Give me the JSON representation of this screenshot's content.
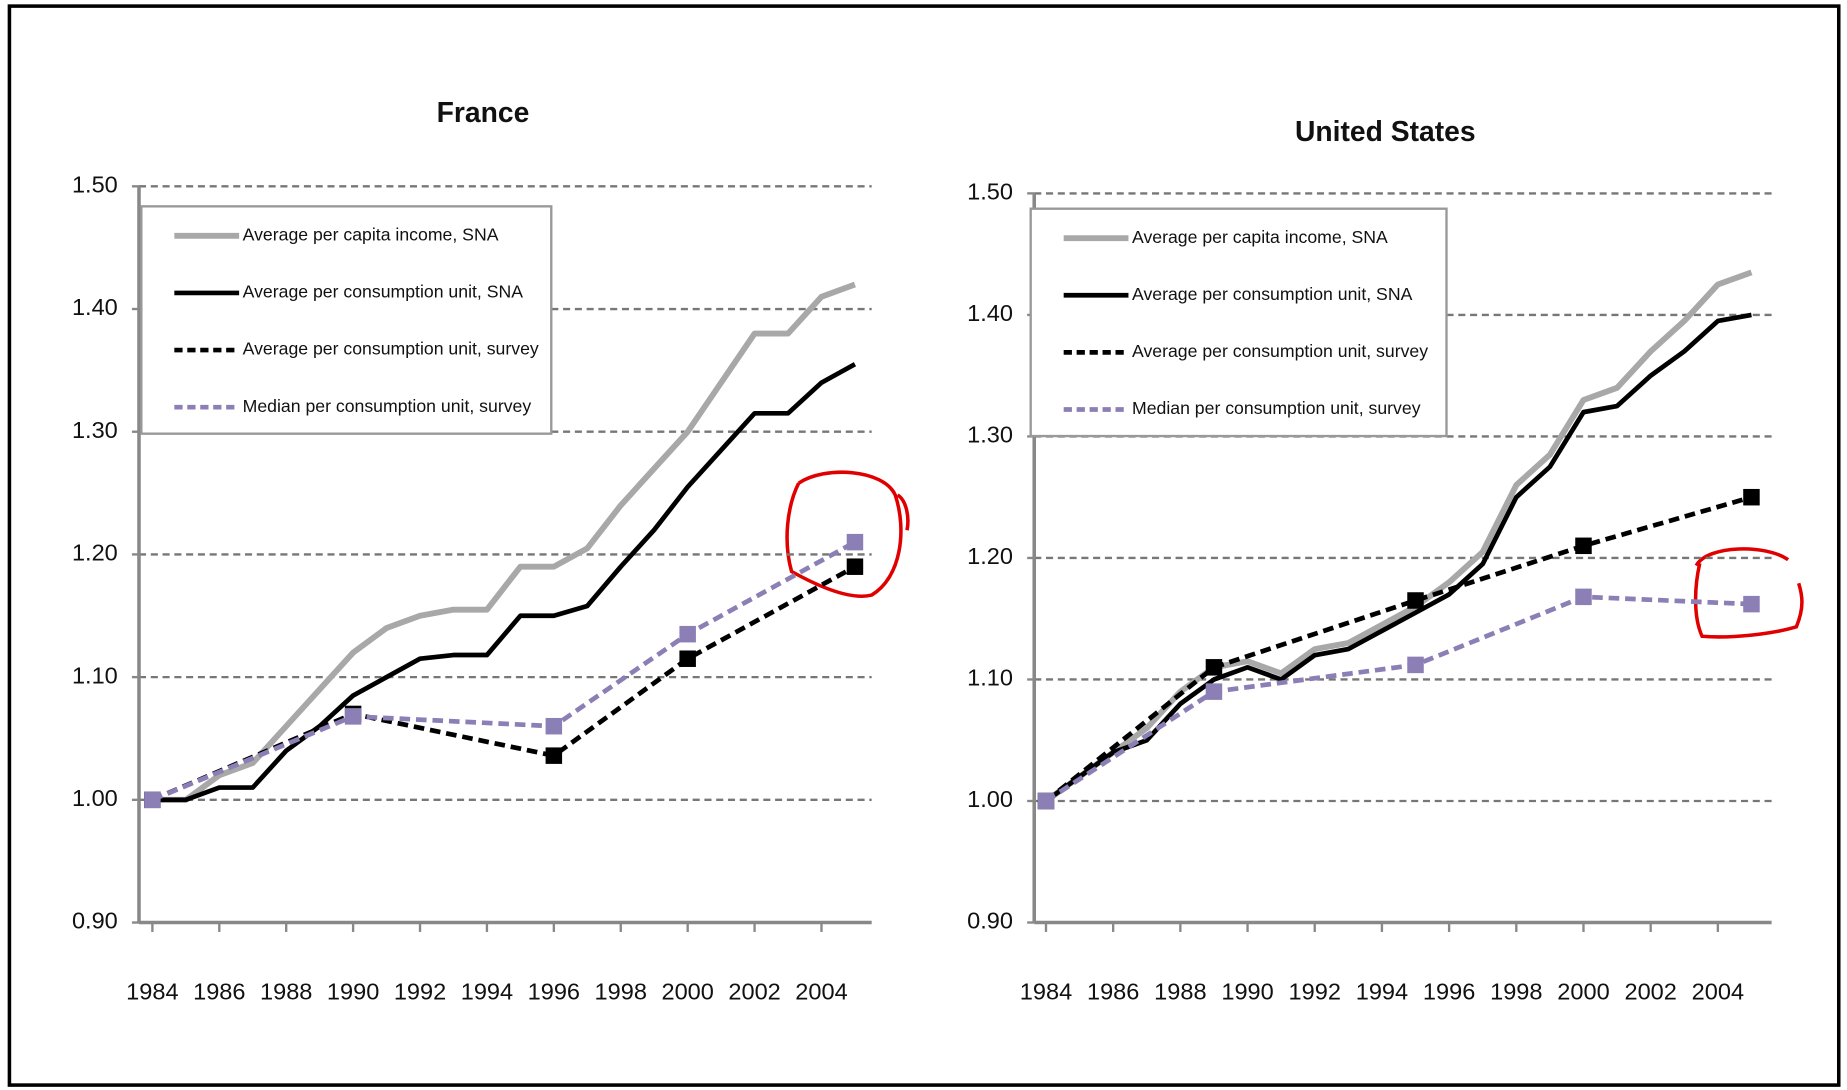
{
  "chart_data": [
    {
      "type": "line",
      "title": "France",
      "x": [
        1984,
        1985,
        1986,
        1987,
        1988,
        1989,
        1990,
        1991,
        1992,
        1993,
        1994,
        1995,
        1996,
        1997,
        1998,
        1999,
        2000,
        2001,
        2002,
        2003,
        2004,
        2005
      ],
      "xlim": [
        1983.6,
        2005.5
      ],
      "xticks": [
        1984,
        1986,
        1988,
        1990,
        1992,
        1994,
        1996,
        1998,
        2000,
        2002,
        2004
      ],
      "ylim": [
        0.9,
        1.5
      ],
      "yticks": [
        {
          "value": 0.9,
          "label": "0.90"
        },
        {
          "value": 1.0,
          "label": "1.00"
        },
        {
          "value": 1.1,
          "label": "1.10"
        },
        {
          "value": 1.2,
          "label": "1.20"
        },
        {
          "value": 1.3,
          "label": "1.30"
        },
        {
          "value": 1.4,
          "label": "1.40"
        },
        {
          "value": 1.5,
          "label": "1.50"
        }
      ],
      "grid": true,
      "legend": "upper left",
      "series": [
        {
          "name": "Average per capita income, SNA",
          "color": "#a8a8a8",
          "dashed": false,
          "markers": false,
          "values": [
            1.0,
            1.0,
            1.02,
            1.03,
            1.06,
            1.09,
            1.12,
            1.14,
            1.15,
            1.155,
            1.155,
            1.19,
            1.19,
            1.205,
            1.24,
            1.27,
            1.3,
            1.34,
            1.38,
            1.38,
            1.41,
            1.42
          ]
        },
        {
          "name": "Average per consumption unit, SNA",
          "color": "#000000",
          "dashed": false,
          "markers": false,
          "values": [
            1.0,
            1.0,
            1.01,
            1.01,
            1.04,
            1.06,
            1.085,
            1.1,
            1.115,
            1.118,
            1.118,
            1.15,
            1.15,
            1.158,
            1.19,
            1.22,
            1.255,
            1.285,
            1.315,
            1.315,
            1.34,
            1.355
          ]
        },
        {
          "name": "Average per consumption unit, survey",
          "color": "#000000",
          "dashed": true,
          "markers": true,
          "x": [
            1984,
            1990,
            1996,
            2000,
            2005
          ],
          "values": [
            1.0,
            1.07,
            1.036,
            1.115,
            1.19
          ]
        },
        {
          "name": "Median per consumption unit, survey",
          "color": "#8b7fb6",
          "dashed": true,
          "markers": true,
          "x": [
            1984,
            1990,
            1996,
            2000,
            2005
          ],
          "values": [
            1.0,
            1.068,
            1.06,
            1.135,
            1.21
          ]
        }
      ]
    },
    {
      "type": "line",
      "title": "United States",
      "x": [
        1984,
        1985,
        1986,
        1987,
        1988,
        1989,
        1990,
        1991,
        1992,
        1993,
        1994,
        1995,
        1996,
        1997,
        1998,
        1999,
        2000,
        2001,
        2002,
        2003,
        2004,
        2005
      ],
      "xlim": [
        1983.65,
        2005.6
      ],
      "xticks": [
        1984,
        1986,
        1988,
        1990,
        1992,
        1994,
        1996,
        1998,
        2000,
        2002,
        2004
      ],
      "ylim": [
        0.9,
        1.5
      ],
      "yticks": [
        {
          "value": 0.9,
          "label": "0.90"
        },
        {
          "value": 1.0,
          "label": "1.00"
        },
        {
          "value": 1.1,
          "label": "1.10"
        },
        {
          "value": 1.2,
          "label": "1.20"
        },
        {
          "value": 1.3,
          "label": "1.30"
        },
        {
          "value": 1.4,
          "label": "1.40"
        },
        {
          "value": 1.5,
          "label": "1.50"
        }
      ],
      "grid": true,
      "legend": "upper left",
      "series": [
        {
          "name": "Average per capita income, SNA",
          "color": "#a8a8a8",
          "dashed": false,
          "markers": false,
          "values": [
            1.0,
            1.02,
            1.04,
            1.06,
            1.09,
            1.11,
            1.115,
            1.105,
            1.125,
            1.13,
            1.145,
            1.16,
            1.18,
            1.205,
            1.26,
            1.285,
            1.33,
            1.34,
            1.37,
            1.395,
            1.425,
            1.435
          ]
        },
        {
          "name": "Average per consumption unit, SNA",
          "color": "#000000",
          "dashed": false,
          "markers": false,
          "values": [
            1.0,
            1.02,
            1.04,
            1.05,
            1.08,
            1.1,
            1.11,
            1.1,
            1.12,
            1.125,
            1.14,
            1.155,
            1.17,
            1.195,
            1.25,
            1.275,
            1.32,
            1.325,
            1.35,
            1.37,
            1.395,
            1.4
          ]
        },
        {
          "name": "Average per consumption unit, survey",
          "color": "#000000",
          "dashed": true,
          "markers": true,
          "x": [
            1984,
            1989,
            1995,
            2000,
            2005
          ],
          "values": [
            1.0,
            1.11,
            1.165,
            1.21,
            1.25
          ]
        },
        {
          "name": "Median per consumption unit, survey",
          "color": "#8b7fb6",
          "dashed": true,
          "markers": true,
          "x": [
            1984,
            1989,
            1995,
            2000,
            2005
          ],
          "values": [
            1.0,
            1.09,
            1.112,
            1.168,
            1.162
          ]
        }
      ]
    }
  ]
}
